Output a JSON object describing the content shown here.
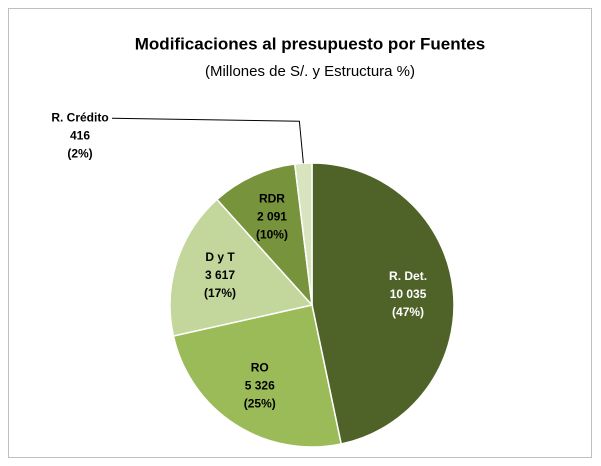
{
  "chart_data": {
    "type": "pie",
    "title": "Modificaciones al presupuesto por Fuentes",
    "subtitle": "(Millones de S/. y Estructura %)",
    "categories": [
      "R. Det.",
      "RO",
      "D y T",
      "RDR",
      "R. Crédito"
    ],
    "values": [
      10035,
      5326,
      3617,
      2091,
      416
    ],
    "value_labels": [
      "10 035",
      "5 326",
      "3 617",
      "2 091",
      "416"
    ],
    "percents": [
      47,
      25,
      17,
      10,
      2
    ],
    "percent_labels": [
      "(47%)",
      "(25%)",
      "(17%)",
      "(10%)",
      "(2%)"
    ],
    "colors": [
      "#4f6228",
      "#9bbb59",
      "#c3d69b",
      "#77933c",
      "#d7e4bd"
    ]
  }
}
